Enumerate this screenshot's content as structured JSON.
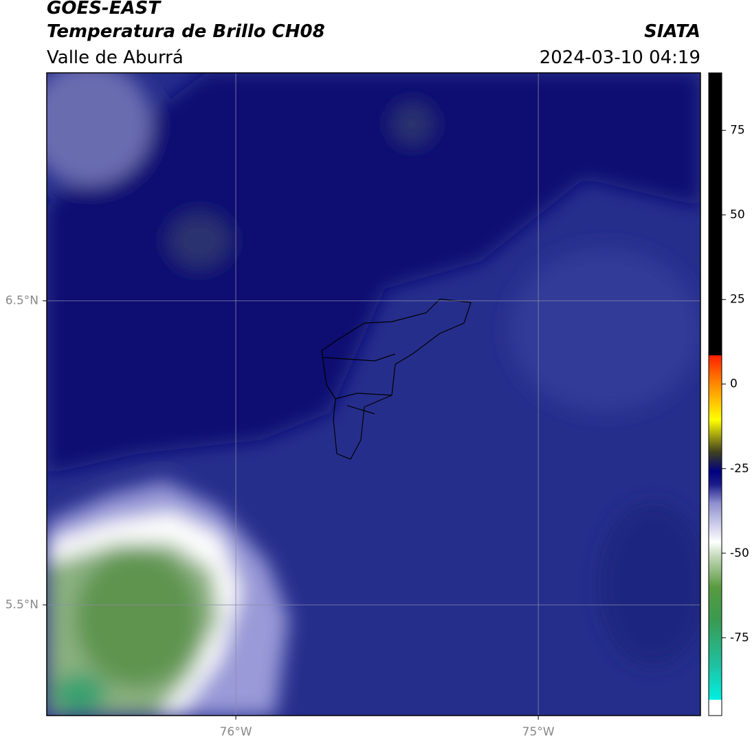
{
  "header": {
    "title": "GOES-EAST",
    "subtitle": "Temperatura de Brillo CH08",
    "region": "Valle de Aburrá",
    "source": "SIATA",
    "timestamp": "2024-03-10 04:19"
  },
  "map": {
    "ylim": [
      5.136,
      7.25
    ],
    "xlim": [
      -76.625,
      -74.464
    ],
    "yticks": [
      {
        "value": 6.5,
        "label": "6.5°N"
      },
      {
        "value": 5.5,
        "label": "5.5°N"
      }
    ],
    "xticks": [
      {
        "value": -76,
        "label": "76°W"
      },
      {
        "value": -75,
        "label": "75°W"
      }
    ],
    "grid": true
  },
  "colorbar": {
    "lim": [
      -98,
      92
    ],
    "ticks": [
      75,
      50,
      25,
      0,
      -25,
      -50,
      -75
    ]
  }
}
